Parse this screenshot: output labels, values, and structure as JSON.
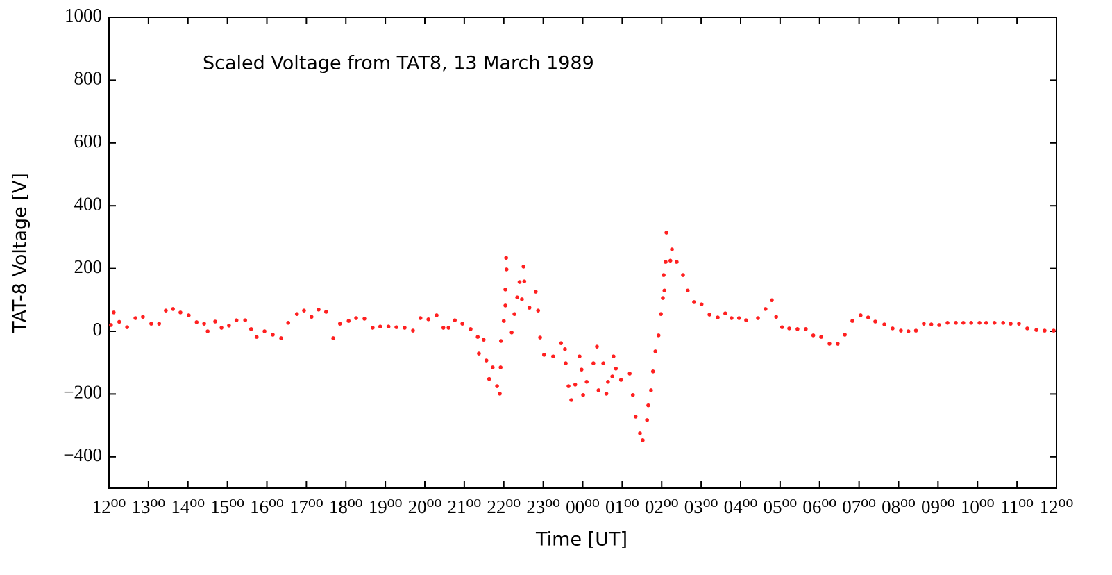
{
  "chart_data": {
    "type": "scatter",
    "title": "Scaled Voltage from TAT8, 13 March 1989",
    "x_label": "Time [UT]",
    "y_label": "TAT-8 Voltage [V]",
    "color": "#ff2020",
    "xlim": [
      0,
      24
    ],
    "ylim": [
      -500,
      1000
    ],
    "xticks": [
      {
        "value": 0,
        "label": "12⁰⁰"
      },
      {
        "value": 1,
        "label": "13⁰⁰"
      },
      {
        "value": 2,
        "label": "14⁰⁰"
      },
      {
        "value": 3,
        "label": "15⁰⁰"
      },
      {
        "value": 4,
        "label": "16⁰⁰"
      },
      {
        "value": 5,
        "label": "17⁰⁰"
      },
      {
        "value": 6,
        "label": "18⁰⁰"
      },
      {
        "value": 7,
        "label": "19⁰⁰"
      },
      {
        "value": 8,
        "label": "20⁰⁰"
      },
      {
        "value": 9,
        "label": "21⁰⁰"
      },
      {
        "value": 10,
        "label": "22⁰⁰"
      },
      {
        "value": 11,
        "label": "23⁰⁰"
      },
      {
        "value": 12,
        "label": "00⁰⁰"
      },
      {
        "value": 13,
        "label": "01⁰⁰"
      },
      {
        "value": 14,
        "label": "02⁰⁰"
      },
      {
        "value": 15,
        "label": "03⁰⁰"
      },
      {
        "value": 16,
        "label": "04⁰⁰"
      },
      {
        "value": 17,
        "label": "05⁰⁰"
      },
      {
        "value": 18,
        "label": "06⁰⁰"
      },
      {
        "value": 19,
        "label": "07⁰⁰"
      },
      {
        "value": 20,
        "label": "08⁰⁰"
      },
      {
        "value": 21,
        "label": "09⁰⁰"
      },
      {
        "value": 22,
        "label": "10⁰⁰"
      },
      {
        "value": 23,
        "label": "11⁰⁰"
      },
      {
        "value": 24,
        "label": "12⁰⁰"
      }
    ],
    "yticks": [
      {
        "value": -400,
        "label": "−400"
      },
      {
        "value": -200,
        "label": "−200"
      },
      0,
      200,
      400,
      600,
      800,
      1000
    ],
    "x": [
      0.05,
      0.12,
      0.26,
      0.46,
      0.67,
      0.86,
      1.07,
      1.27,
      1.44,
      1.62,
      1.81,
      2.02,
      2.22,
      2.41,
      2.5,
      2.69,
      2.85,
      3.04,
      3.23,
      3.45,
      3.6,
      3.74,
      3.94,
      4.15,
      4.36,
      4.54,
      4.76,
      4.94,
      5.13,
      5.31,
      5.5,
      5.68,
      5.85,
      6.07,
      6.26,
      6.47,
      6.68,
      6.87,
      7.08,
      7.28,
      7.49,
      7.7,
      7.89,
      8.09,
      8.3,
      8.47,
      8.6,
      8.76,
      8.95,
      9.16,
      9.34,
      9.37,
      9.49,
      9.56,
      9.63,
      9.72,
      9.83,
      9.9,
      9.92,
      9.93,
      10.0,
      10.04,
      10.04,
      10.06,
      10.07,
      10.2,
      10.27,
      10.34,
      10.4,
      10.46,
      10.5,
      10.52,
      10.65,
      10.81,
      10.87,
      10.92,
      11.02,
      11.25,
      11.45,
      11.55,
      11.57,
      11.64,
      11.71,
      11.81,
      11.92,
      11.97,
      12.01,
      12.1,
      12.27,
      12.36,
      12.4,
      12.52,
      12.6,
      12.64,
      12.75,
      12.78,
      12.84,
      12.97,
      13.19,
      13.27,
      13.34,
      13.45,
      13.52,
      13.63,
      13.66,
      13.73,
      13.78,
      13.84,
      13.92,
      13.98,
      14.03,
      14.07,
      14.05,
      14.1,
      14.12,
      14.22,
      14.26,
      14.38,
      14.54,
      14.66,
      14.82,
      15.01,
      15.21,
      15.42,
      15.61,
      15.77,
      15.96,
      16.14,
      16.44,
      16.63,
      16.79,
      16.9,
      17.05,
      17.23,
      17.44,
      17.65,
      17.84,
      18.04,
      18.25,
      18.46,
      18.64,
      18.83,
      19.04,
      19.23,
      19.41,
      19.64,
      19.85,
      20.06,
      20.25,
      20.44,
      20.64,
      20.83,
      21.03,
      21.24,
      21.45,
      21.64,
      21.84,
      22.05,
      22.22,
      22.43,
      22.65,
      22.84,
      23.05,
      23.26,
      23.49,
      23.7,
      23.93
    ],
    "values": [
      20,
      60,
      30,
      13,
      42,
      46,
      24,
      24,
      66,
      71,
      60,
      51,
      29,
      24,
      0,
      31,
      11,
      18,
      35,
      35,
      7,
      -18,
      0,
      -11,
      -22,
      27,
      55,
      66,
      46,
      69,
      62,
      -22,
      24,
      33,
      42,
      40,
      11,
      15,
      15,
      13,
      11,
      2,
      42,
      38,
      51,
      11,
      11,
      35,
      24,
      7,
      -18,
      -71,
      -27,
      -93,
      -152,
      -115,
      -175,
      -199,
      -115,
      -31,
      33,
      82,
      133,
      234,
      197,
      -4,
      55,
      108,
      157,
      102,
      206,
      159,
      75,
      126,
      66,
      -20,
      -75,
      -80,
      -38,
      -57,
      -102,
      -175,
      -219,
      -170,
      -80,
      -122,
      -203,
      -161,
      -102,
      -49,
      -188,
      -102,
      -199,
      -161,
      -144,
      -80,
      -119,
      -155,
      -135,
      -203,
      -272,
      -325,
      -347,
      -283,
      -236,
      -188,
      -128,
      -64,
      -13,
      55,
      106,
      130,
      179,
      221,
      314,
      225,
      261,
      221,
      179,
      130,
      93,
      86,
      53,
      44,
      57,
      42,
      42,
      35,
      42,
      71,
      99,
      46,
      13,
      9,
      7,
      7,
      -13,
      -18,
      -40,
      -40,
      -11,
      33,
      51,
      44,
      31,
      22,
      9,
      2,
      0,
      2,
      24,
      22,
      20,
      27,
      27,
      27,
      27,
      27,
      27,
      27,
      27,
      24,
      24,
      9,
      4,
      2,
      2
    ]
  }
}
